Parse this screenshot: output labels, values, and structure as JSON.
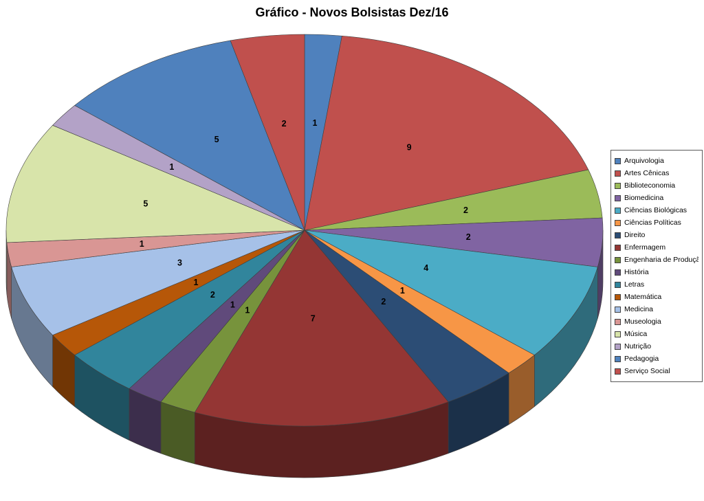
{
  "title": "Gráfico - Novos Bolsistas Dez/16",
  "chart_data": {
    "type": "pie",
    "style": "3d",
    "title": "Gráfico - Novos Bolsistas Dez/16",
    "legend_position": "right",
    "data_labels": "value",
    "start_angle_deg": 0,
    "direction": "clockwise",
    "categories": [
      "Arquivologia",
      "Artes Cênicas",
      "Biblioteconomia",
      "Biomedicina",
      "Ciências Biológicas",
      "Ciências Políticas",
      "Direito",
      "Enfermagem",
      "Engenharia de Produção",
      "História",
      "Letras",
      "Matemática",
      "Medicina",
      "Museologia",
      "Música",
      "Nutrição",
      "Pedagogia",
      "Serviço Social"
    ],
    "values": [
      1,
      9,
      2,
      2,
      4,
      1,
      2,
      7,
      1,
      1,
      2,
      1,
      3,
      1,
      5,
      1,
      5,
      2
    ],
    "colors": [
      "#4F81BD",
      "#C0504D",
      "#9BBB59",
      "#8064A2",
      "#4BACC6",
      "#F79646",
      "#2C4D75",
      "#943634",
      "#77933C",
      "#604A7B",
      "#31859C",
      "#B65708",
      "#A6C1E8",
      "#D99694",
      "#D8E4AA",
      "#B3A2C7",
      "#4F81BD",
      "#C0504D"
    ]
  }
}
